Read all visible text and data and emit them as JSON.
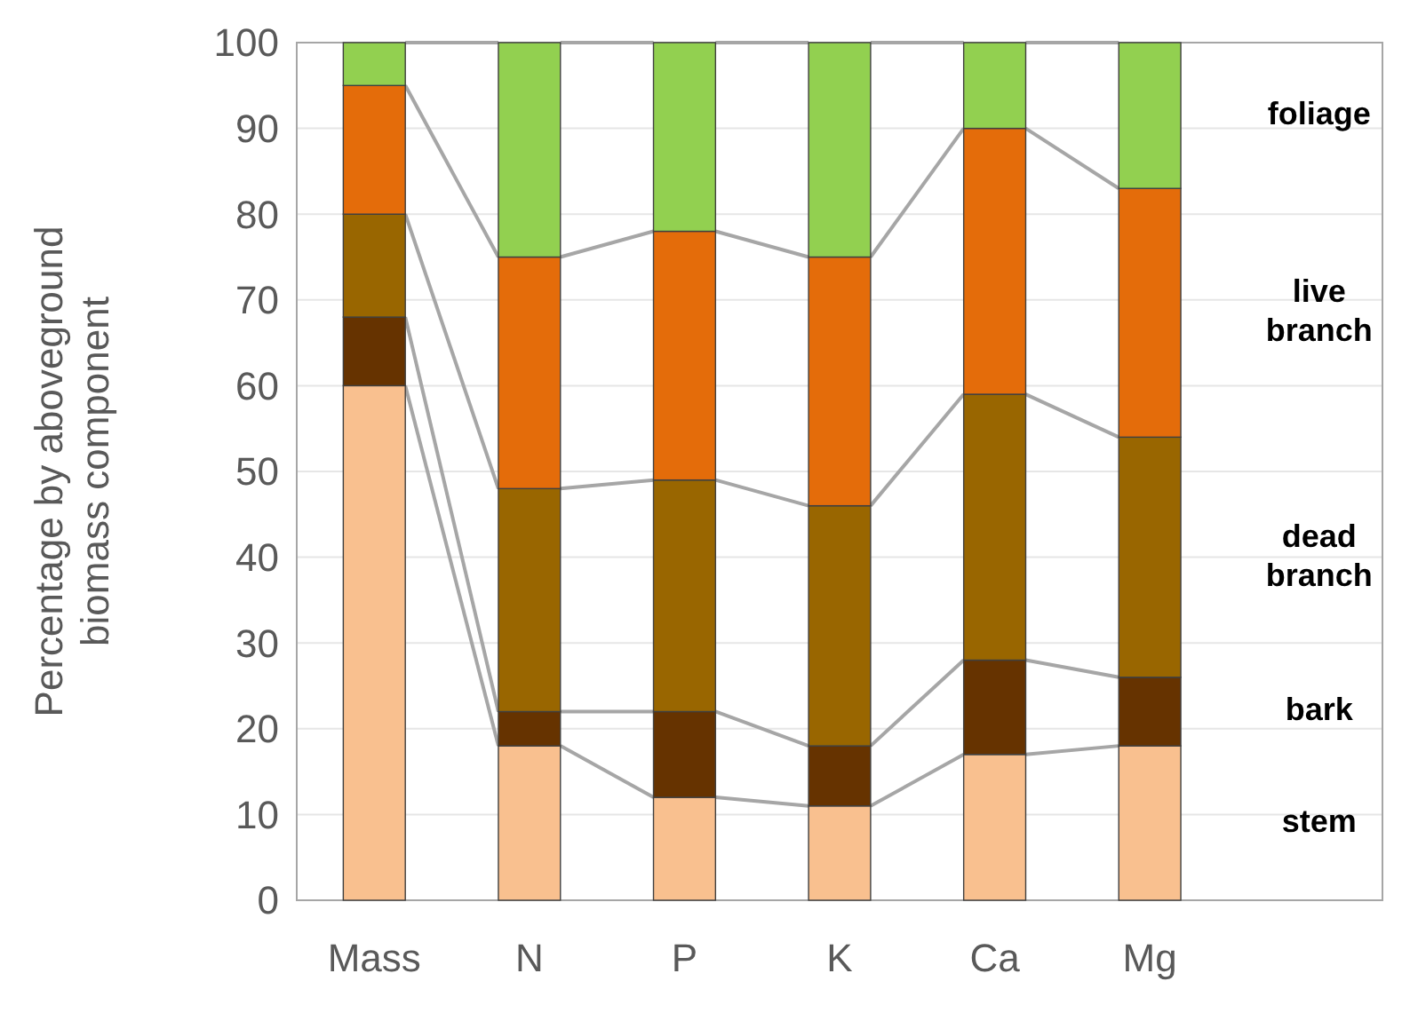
{
  "chart_data": {
    "type": "bar",
    "stacked": true,
    "ylabel": "Percentage by aboveground biomass component",
    "categories": [
      "Mass",
      "N",
      "P",
      "K",
      "Ca",
      "Mg"
    ],
    "series": [
      {
        "name": "stem",
        "color": "#f9c08f",
        "values": [
          60,
          18,
          12,
          11,
          17,
          18
        ]
      },
      {
        "name": "bark",
        "color": "#663300",
        "values": [
          8,
          4,
          10,
          7,
          11,
          8
        ]
      },
      {
        "name": "dead branch",
        "color": "#996600",
        "values": [
          12,
          26,
          27,
          28,
          31,
          28
        ]
      },
      {
        "name": "live branch",
        "color": "#e46c0a",
        "values": [
          15,
          27,
          29,
          29,
          31,
          29
        ]
      },
      {
        "name": "foliage",
        "color": "#92d050",
        "values": [
          5,
          25,
          22,
          25,
          10,
          17
        ]
      }
    ],
    "ylim": [
      0,
      100
    ],
    "yticks": [
      0,
      10,
      20,
      30,
      40,
      50,
      60,
      70,
      80,
      90,
      100
    ],
    "grid": "y"
  }
}
